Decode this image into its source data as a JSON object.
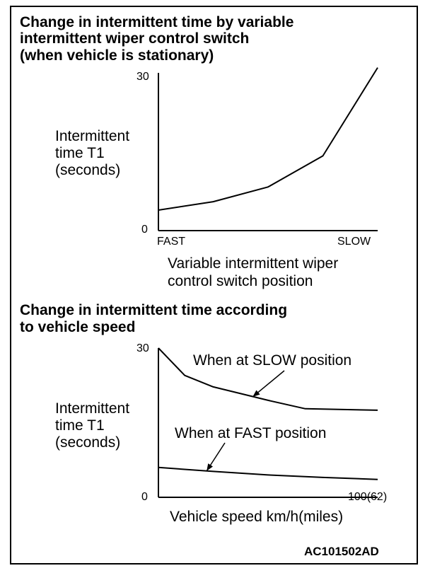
{
  "titles": {
    "chart1_line1": "Change in intermittent time by variable",
    "chart1_line2": "intermittent wiper control switch",
    "chart1_line3": "(when vehicle is stationary)",
    "chart2_line1": "Change in intermittent time according",
    "chart2_line2": "to vehicle speed"
  },
  "figure_code": "AC101502AD",
  "chart_data": [
    {
      "type": "line",
      "title": "Change in intermittent time by variable intermittent wiper control switch (when vehicle is stationary)",
      "ylabel": "Intermittent time T1 (seconds)",
      "ylabel_lines": [
        "Intermittent",
        "time T1",
        "(seconds)"
      ],
      "xlabel_lines": [
        "Variable intermittent wiper",
        "control switch position"
      ],
      "x_tick_labels": [
        "FAST",
        "SLOW"
      ],
      "y_tick_labels": [
        "30",
        "0"
      ],
      "ylim": [
        0,
        30
      ],
      "xlim": [
        0,
        1
      ],
      "grid": false,
      "series": [
        {
          "x": [
            0,
            0.25,
            0.5,
            0.75,
            1.0
          ],
          "y": [
            3.9,
            5.5,
            8.3,
            14.2,
            31.0
          ]
        }
      ]
    },
    {
      "type": "line",
      "title": "Change in intermittent time according to vehicle speed",
      "ylabel": "Intermittent time T1 (seconds)",
      "ylabel_lines": [
        "Intermittent",
        "time T1",
        "(seconds)"
      ],
      "xlabel": "Vehicle speed   km/h(miles)",
      "x_tick_labels": [
        "0",
        "100(62)"
      ],
      "y_tick_labels": [
        "30"
      ],
      "ylim": [
        0,
        30
      ],
      "xlim": [
        0,
        100
      ],
      "grid": false,
      "series": [
        {
          "name": "When at SLOW position",
          "x": [
            0,
            12,
            25,
            50,
            67,
            100
          ],
          "y": [
            30,
            24.5,
            22.2,
            19.5,
            17.8,
            17.5
          ]
        },
        {
          "name": "When at FAST position",
          "x": [
            0,
            25,
            50,
            75,
            100
          ],
          "y": [
            6.0,
            5.2,
            4.5,
            4.0,
            3.6
          ]
        }
      ]
    }
  ]
}
